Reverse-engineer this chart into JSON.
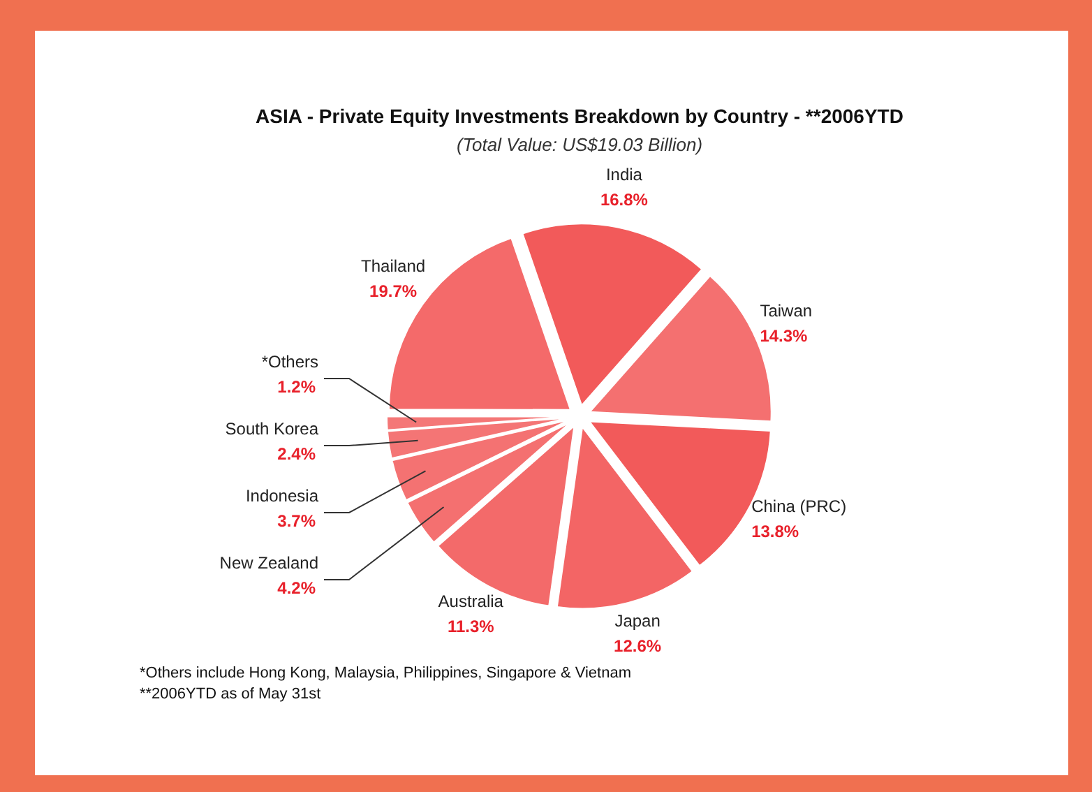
{
  "chart_data": {
    "type": "pie",
    "title": "ASIA - Private Equity Investments Breakdown by Country - **2006YTD",
    "subtitle": "(Total Value: US$19.03 Billion)",
    "categories": [
      "India",
      "Taiwan",
      "China (PRC)",
      "Japan",
      "Australia",
      "New Zealand",
      "Indonesia",
      "South Korea",
      "*Others",
      "Thailand"
    ],
    "values": [
      16.8,
      14.3,
      13.8,
      12.6,
      11.3,
      4.2,
      3.7,
      2.4,
      1.2,
      19.7
    ],
    "value_labels": [
      "16.8%",
      "14.3%",
      "13.8%",
      "12.6%",
      "11.3%",
      "4.2%",
      "3.7%",
      "2.4%",
      "1.2%",
      "19.7%"
    ],
    "colors": [
      "#f25a5a",
      "#f47070",
      "#f25a5a",
      "#f36565",
      "#f36a6a",
      "#f47070",
      "#f47272",
      "#f47575",
      "#f47777",
      "#f46a6a"
    ],
    "annotations": [
      "*Others include Hong Kong, Malaysia, Philippines, Singapore & Vietnam",
      "**2006YTD as of May 31st"
    ]
  }
}
